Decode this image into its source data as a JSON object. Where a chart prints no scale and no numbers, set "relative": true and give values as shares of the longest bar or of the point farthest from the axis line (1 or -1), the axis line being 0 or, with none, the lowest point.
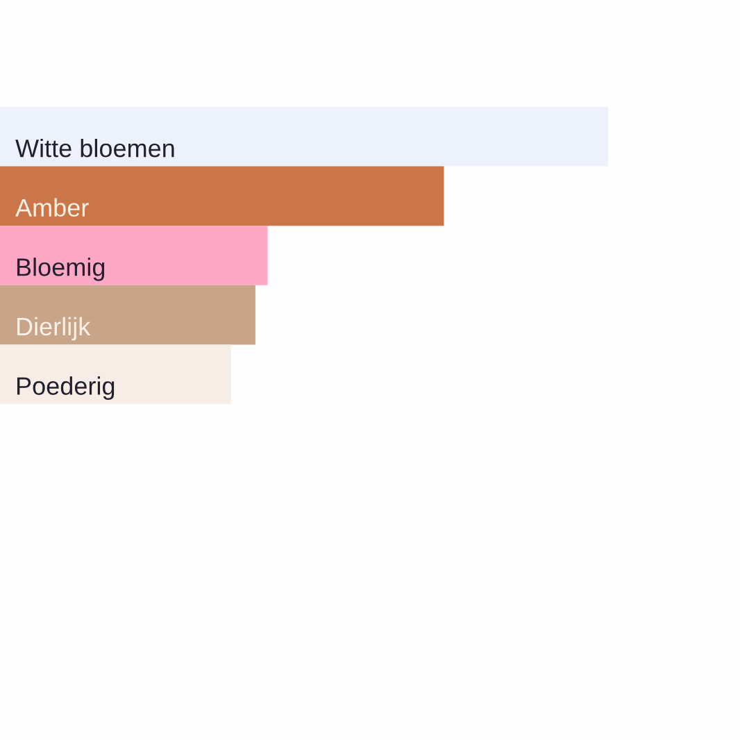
{
  "chart_data": {
    "type": "bar",
    "orientation": "horizontal",
    "relative": true,
    "categories": [
      "Witte bloemen",
      "Amber",
      "Bloemig",
      "Dierlijk",
      "Poederig"
    ],
    "values": [
      1,
      0.73,
      0.44,
      0.42,
      0.38
    ],
    "colors": [
      "#edf1fb",
      "#cb7649",
      "#ffa8c5",
      "#c8a589",
      "#f6ede6"
    ],
    "tick_labels": "y"
  }
}
